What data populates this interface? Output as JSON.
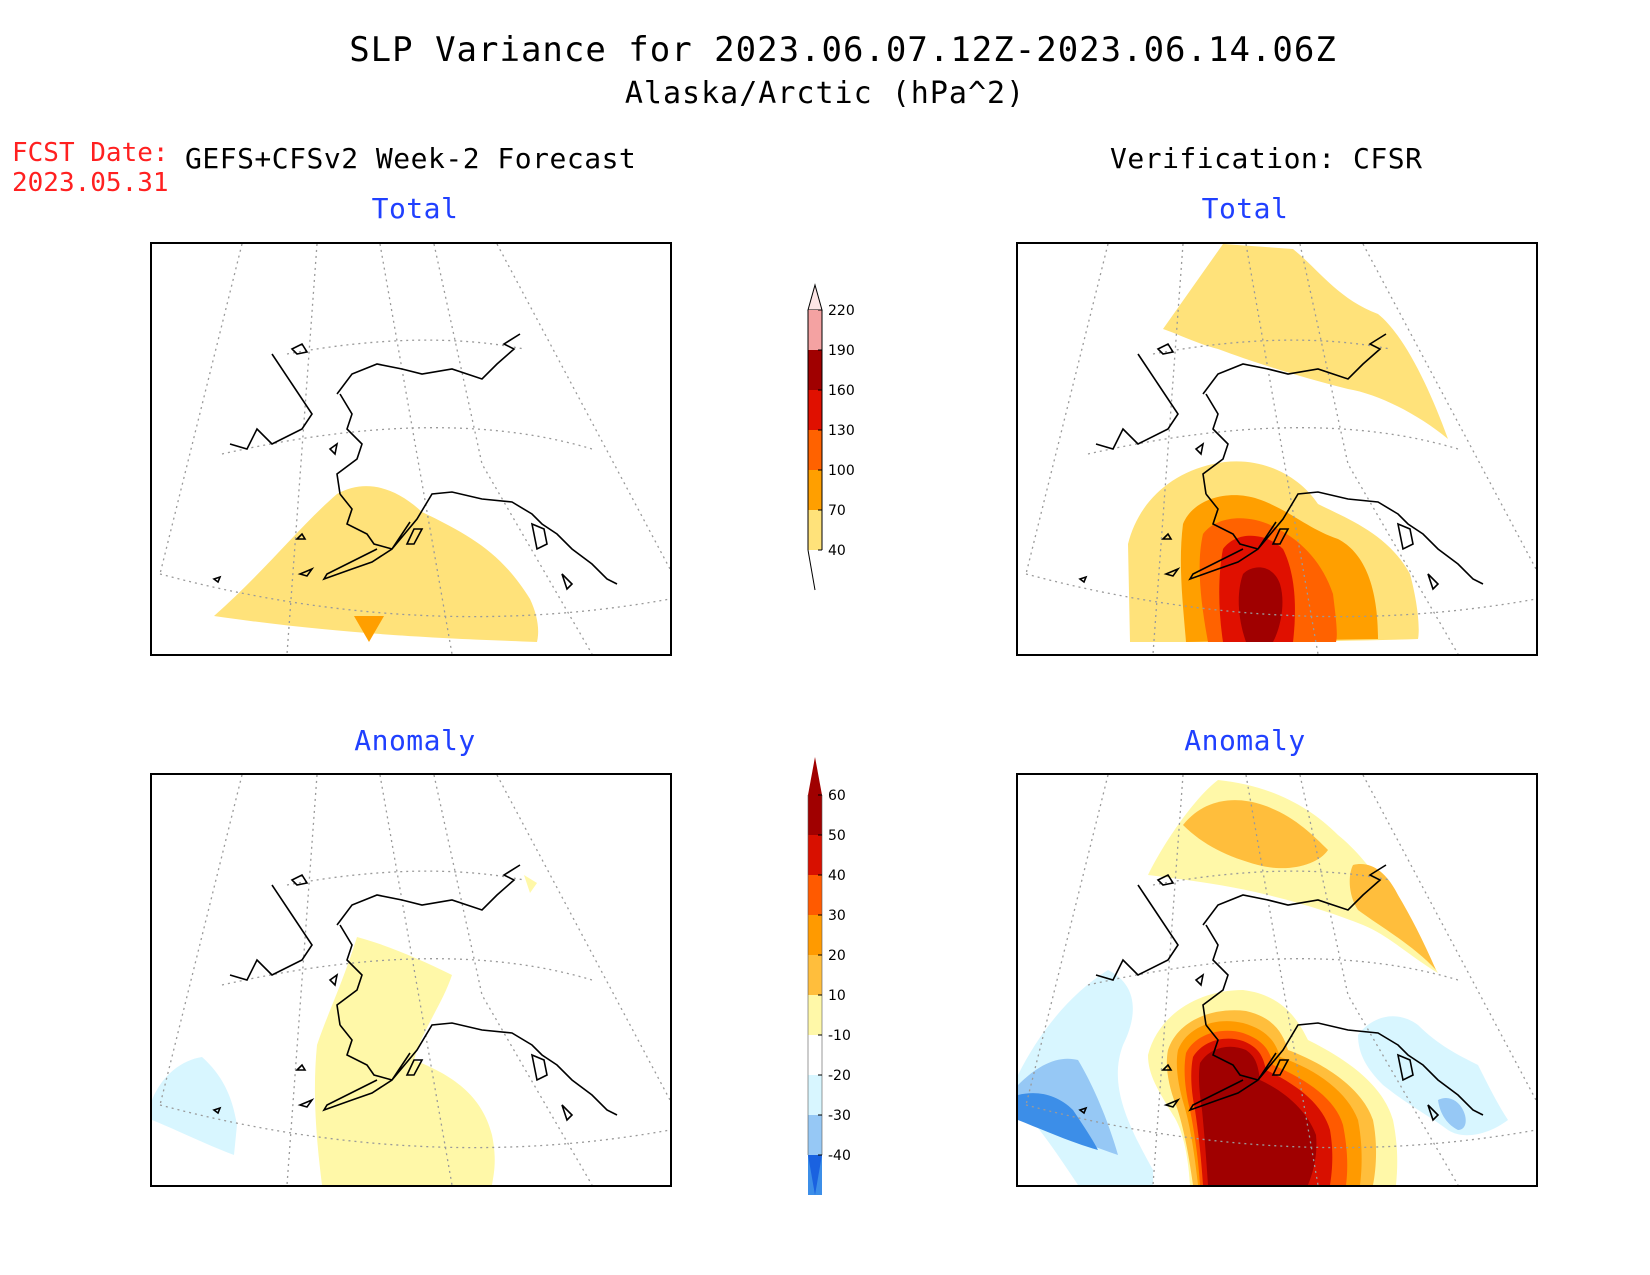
{
  "header": {
    "title": "SLP Variance for 2023.06.07.12Z-2023.06.14.06Z",
    "subtitle": "Alaska/Arctic (hPa^2)",
    "fcst_label": "FCST Date:",
    "fcst_date": "2023.05.31",
    "left_heading": "GEFS+CFSv2 Week-2 Forecast",
    "right_heading": "Verification: CFSR"
  },
  "panels": {
    "forecast_total_title": "Total",
    "verification_total_title": "Total",
    "forecast_anomaly_title": "Anomaly",
    "verification_anomaly_title": "Anomaly"
  },
  "colorbars": {
    "total": {
      "labels": [
        "40",
        "70",
        "100",
        "130",
        "160",
        "190",
        "220"
      ],
      "colors": [
        "#ffe27a",
        "#ff9f00",
        "#ff6200",
        "#e01000",
        "#a00000",
        "#f4a2a2",
        "#fde6e6"
      ]
    },
    "anomaly": {
      "labels": [
        "-40",
        "-30",
        "-20",
        "-10",
        "10",
        "20",
        "30",
        "40",
        "50",
        "60"
      ],
      "colors": [
        "#1a62e0",
        "#3c8ee8",
        "#96c8f5",
        "#d8f6ff",
        "#ffffff",
        "#fff8a8",
        "#ffbe3c",
        "#ff9a00",
        "#ff5a00",
        "#d81000",
        "#a00000"
      ]
    }
  },
  "fill_colors": {
    "total_40": "#ffe27a",
    "total_70": "#ff9f00",
    "total_100": "#ff6200",
    "total_130": "#e01000",
    "total_160": "#a00000",
    "anom_pos10": "#fff8a8",
    "anom_pos20": "#ffbe3c",
    "anom_pos30": "#ff9a00",
    "anom_pos40": "#ff5a00",
    "anom_pos50": "#d81000",
    "anom_pos60": "#a00000",
    "anom_neg10": "#d8f6ff",
    "anom_neg20": "#96c8f5",
    "anom_neg30": "#3c8ee8"
  }
}
